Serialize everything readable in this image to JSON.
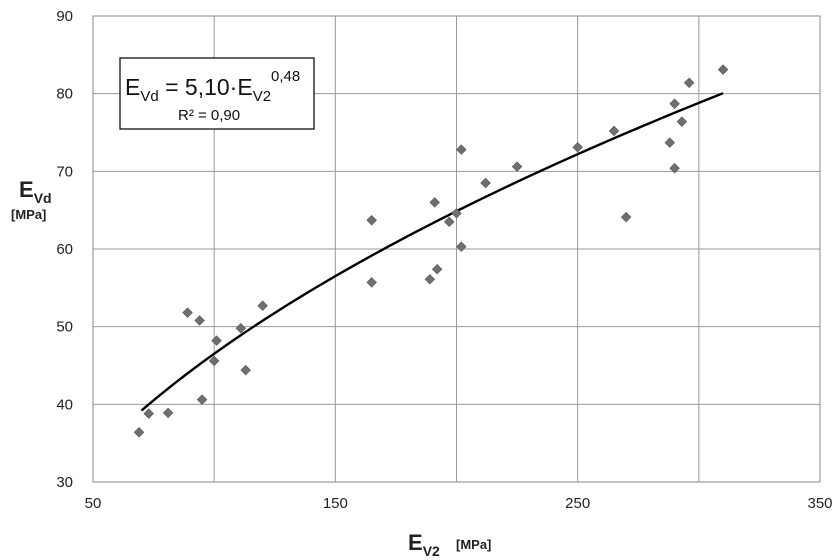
{
  "chart_data": {
    "type": "scatter",
    "xlim": [
      50,
      350
    ],
    "ylim": [
      30,
      90
    ],
    "x_ticks": [
      "50",
      "150",
      "250",
      "350"
    ],
    "y_ticks": [
      "30",
      "40",
      "50",
      "60",
      "70",
      "80",
      "90"
    ],
    "grid": true,
    "xlabel": {
      "main": "E",
      "sub": "V2",
      "unit": "[MPa]"
    },
    "ylabel": {
      "main": "E",
      "sub": "Vd",
      "unit": "[MPa]"
    },
    "annotation": {
      "lhs_main": "E",
      "lhs_sub": "Vd",
      "equals": " = 5,10·E",
      "rhs_sub": "V2",
      "exponent": "0,48",
      "r2": "R² = 0,90"
    },
    "trendline": {
      "coef": 5.1,
      "exp": 0.48,
      "x_start": 70,
      "x_end": 310
    },
    "points": [
      {
        "x": 69,
        "y": 36.4
      },
      {
        "x": 73,
        "y": 38.8
      },
      {
        "x": 81,
        "y": 38.9
      },
      {
        "x": 89,
        "y": 51.8
      },
      {
        "x": 94,
        "y": 50.8
      },
      {
        "x": 95,
        "y": 40.6
      },
      {
        "x": 100,
        "y": 45.6
      },
      {
        "x": 101,
        "y": 48.2
      },
      {
        "x": 111,
        "y": 49.8
      },
      {
        "x": 113,
        "y": 44.4
      },
      {
        "x": 120,
        "y": 52.7
      },
      {
        "x": 165,
        "y": 63.7
      },
      {
        "x": 165,
        "y": 55.7
      },
      {
        "x": 189,
        "y": 56.1
      },
      {
        "x": 191,
        "y": 66.0
      },
      {
        "x": 192,
        "y": 57.4
      },
      {
        "x": 197,
        "y": 63.5
      },
      {
        "x": 200,
        "y": 64.6
      },
      {
        "x": 202,
        "y": 60.3
      },
      {
        "x": 202,
        "y": 72.8
      },
      {
        "x": 212,
        "y": 68.5
      },
      {
        "x": 225,
        "y": 70.6
      },
      {
        "x": 250,
        "y": 73.1
      },
      {
        "x": 265,
        "y": 75.2
      },
      {
        "x": 270,
        "y": 64.1
      },
      {
        "x": 288,
        "y": 73.7
      },
      {
        "x": 290,
        "y": 78.7
      },
      {
        "x": 290,
        "y": 70.4
      },
      {
        "x": 293,
        "y": 76.4
      },
      {
        "x": 296,
        "y": 81.4
      },
      {
        "x": 310,
        "y": 83.1
      }
    ]
  }
}
